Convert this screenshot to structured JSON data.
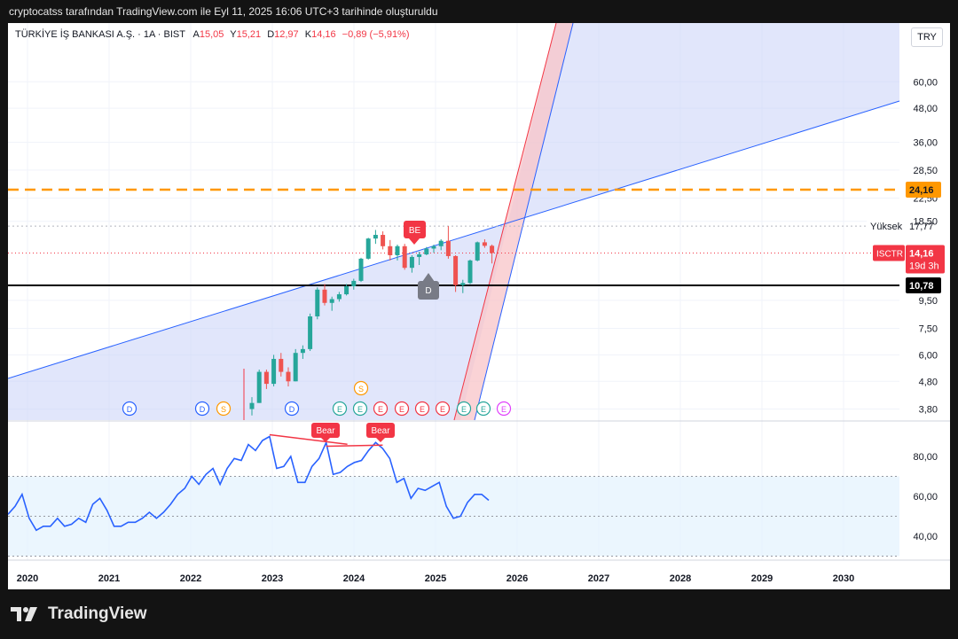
{
  "caption": "cryptocatss tarafından TradingView.com ile Eyl 11, 2025 16:06 UTC+3 tarihinde oluşturuldu",
  "legend": {
    "symbol": "TÜRKİYE İŞ BANKASI A.Ş. · 1A · BIST",
    "open_label": "A",
    "open": "15,05",
    "high_label": "Y",
    "high": "15,21",
    "low_label": "D",
    "low": "12,97",
    "close_label": "K",
    "close": "14,16",
    "change": "−0,89 (−5,91%)"
  },
  "currency": "TRY",
  "price_axis_ticks": [
    "60,00",
    "48,00",
    "36,00",
    "28,50",
    "22,50",
    "18,50",
    "9,50",
    "7,50",
    "6,00",
    "4,80",
    "3,80"
  ],
  "price_badges": {
    "level_2416": "24,16",
    "high_label": "Yüksek",
    "high_value": "17,77",
    "symbol_tag": "ISCTR",
    "last_price": "14,16",
    "countdown": "19d 3h",
    "level_1078": "10,78"
  },
  "rsi_axis_ticks": [
    "80,00",
    "60,00",
    "40,00"
  ],
  "x_axis_ticks": [
    "2020",
    "2021",
    "2022",
    "2023",
    "2024",
    "2025",
    "2026",
    "2027",
    "2028",
    "2029",
    "2030"
  ],
  "markers": {
    "be_label": "BE",
    "d_label": "D",
    "bear_labels": [
      "Bear",
      "Bear"
    ],
    "event_row": [
      "D",
      "D",
      "S",
      "D",
      "E",
      "E",
      "E",
      "E",
      "E",
      "E",
      "E",
      "E",
      "E"
    ],
    "event_s_upper": "S"
  },
  "colors": {
    "up": "#26a69a",
    "down": "#ef5350",
    "rsi": "#2962ff",
    "level_dashed": "#ff9800",
    "badge_red": "#f23645",
    "channel_fill": "#c8d2f8"
  },
  "chart_data": {
    "type": "candlestick",
    "symbol": "ISCTR",
    "price_scale": "log",
    "candles_ohlc": [
      [
        3.8,
        4.2,
        3.6,
        4.0
      ],
      [
        4.0,
        5.3,
        4.0,
        5.2
      ],
      [
        5.2,
        5.3,
        4.5,
        4.7
      ],
      [
        4.7,
        6.0,
        4.6,
        5.8
      ],
      [
        5.8,
        6.1,
        5.0,
        5.2
      ],
      [
        5.2,
        5.4,
        4.6,
        4.8
      ],
      [
        4.8,
        6.3,
        4.8,
        6.1
      ],
      [
        6.1,
        6.5,
        5.8,
        6.3
      ],
      [
        6.3,
        8.5,
        6.2,
        8.3
      ],
      [
        8.3,
        10.6,
        8.1,
        10.4
      ],
      [
        10.4,
        10.9,
        9.1,
        9.3
      ],
      [
        9.3,
        9.8,
        8.7,
        9.6
      ],
      [
        9.6,
        10.2,
        9.4,
        10.0
      ],
      [
        10.0,
        10.9,
        9.9,
        10.7
      ],
      [
        10.7,
        11.4,
        10.4,
        11.2
      ],
      [
        11.2,
        13.6,
        11.1,
        13.5
      ],
      [
        13.5,
        16.1,
        13.4,
        16.0
      ],
      [
        16.0,
        17.2,
        15.3,
        16.5
      ],
      [
        16.5,
        17.0,
        14.6,
        15.0
      ],
      [
        15.0,
        15.8,
        13.3,
        13.9
      ],
      [
        13.9,
        15.2,
        13.3,
        15.0
      ],
      [
        15.0,
        15.3,
        12.3,
        12.5
      ],
      [
        12.5,
        13.9,
        12.0,
        13.7
      ],
      [
        13.7,
        14.3,
        12.8,
        14.0
      ],
      [
        14.0,
        14.9,
        13.9,
        14.7
      ],
      [
        14.7,
        15.2,
        14.2,
        15.0
      ],
      [
        15.0,
        15.9,
        14.5,
        15.7
      ],
      [
        15.7,
        17.77,
        13.5,
        13.8
      ],
      [
        13.8,
        13.9,
        10.2,
        10.8
      ],
      [
        10.8,
        11.3,
        10.1,
        11.0
      ],
      [
        11.0,
        13.4,
        10.9,
        13.3
      ],
      [
        13.3,
        15.6,
        13.2,
        15.5
      ],
      [
        15.5,
        15.9,
        14.8,
        15.05
      ],
      [
        15.05,
        15.21,
        12.97,
        14.16
      ]
    ],
    "last_close": 14.16,
    "horizontal_levels": [
      24.16,
      10.78
    ],
    "period_high": 17.77,
    "rsi_values": [
      51,
      55,
      61,
      49,
      43,
      45,
      45,
      49,
      45,
      46,
      49,
      47,
      56,
      59,
      53,
      45,
      45,
      47,
      47,
      49,
      52,
      49,
      52,
      56,
      61,
      64,
      70,
      66,
      71,
      74,
      66,
      74,
      79,
      78,
      86,
      83,
      88,
      90,
      74,
      75,
      80,
      67,
      67,
      75,
      79,
      87,
      71,
      72,
      75,
      77,
      78,
      83,
      87,
      84,
      79,
      67,
      69,
      59,
      64,
      63,
      65,
      67,
      55,
      49,
      50,
      57,
      61,
      61,
      58
    ],
    "rsi_levels": [
      70,
      50,
      30
    ],
    "rsi_range": [
      28,
      96
    ],
    "x_ticks": [
      "2020",
      "2021",
      "2022",
      "2023",
      "2024",
      "2025",
      "2026",
      "2027",
      "2028",
      "2029",
      "2030"
    ]
  }
}
